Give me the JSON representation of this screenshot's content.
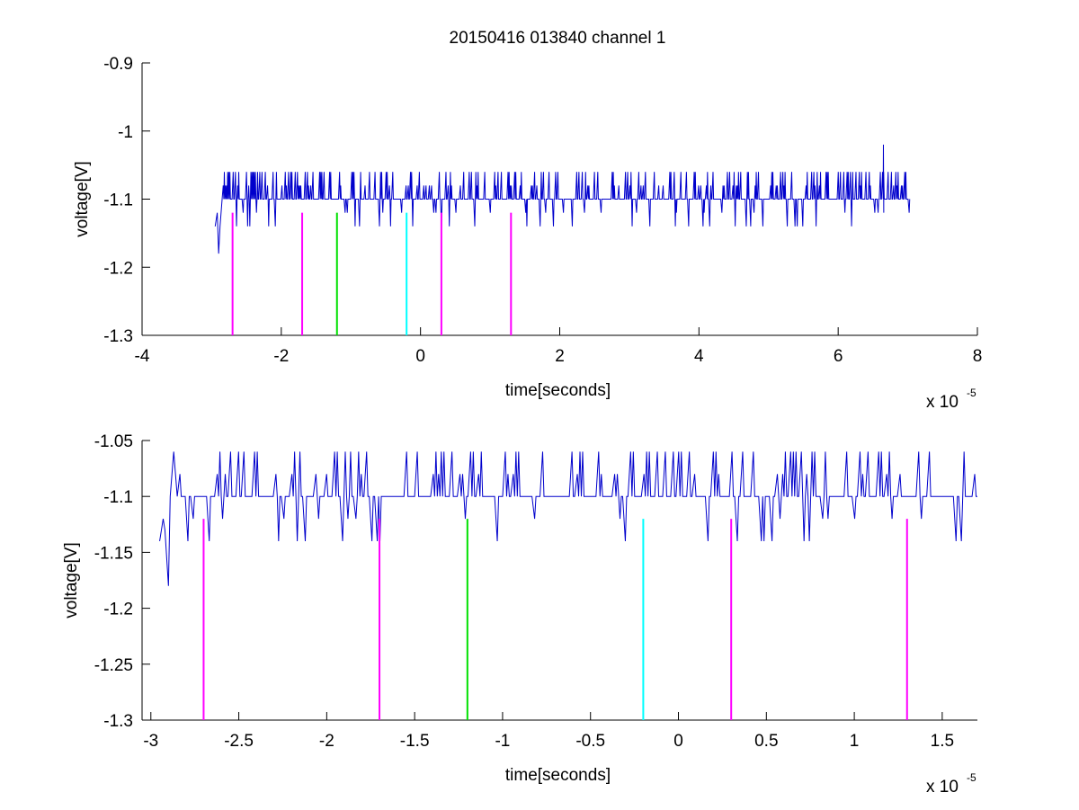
{
  "figure_title": "20150416 013840 channel 1",
  "colors": {
    "signal": "#0000cc",
    "magenta": "#ff00ff",
    "green": "#00e000",
    "cyan": "#00ffff",
    "axes": "#000000",
    "background": "#ffffff"
  },
  "chart_data": [
    {
      "type": "line",
      "title": "20150416 013840 channel 1",
      "xlabel": "time[seconds]",
      "ylabel": "voltage[V]",
      "x_multiplier_label": "x 10",
      "x_multiplier_exponent": "-5",
      "xlim": [
        -4,
        8
      ],
      "ylim": [
        -1.3,
        -0.9
      ],
      "x_ticks": [
        -4,
        -2,
        0,
        2,
        4,
        6,
        8
      ],
      "x_tick_labels": [
        "-4",
        "-2",
        "0",
        "2",
        "4",
        "6",
        "8"
      ],
      "y_ticks": [
        -1.3,
        -1.2,
        -1.1,
        -1,
        -0.9
      ],
      "y_tick_labels": [
        "-1.3",
        "-1.2",
        "-1.1",
        "-1",
        "-0.9"
      ],
      "grid": false,
      "series": [
        {
          "kind": "noisy-signal",
          "color": "#0000cc",
          "x_start": -2.95,
          "x_end": 7.02,
          "baseline": -1.1,
          "levels": [
            -1.14,
            -1.12,
            -1.1,
            -1.08,
            -1.06
          ],
          "initial_points": [
            [
              -2.95,
              -1.14
            ],
            [
              -2.92,
              -1.12
            ],
            [
              -2.9,
              -1.18
            ],
            [
              -2.88,
              -1.14
            ],
            [
              -2.85,
              -1.1
            ]
          ],
          "spike": [
            6.65,
            -1.02
          ]
        }
      ],
      "markers": [
        {
          "x": -2.7,
          "y_top": -1.12,
          "y_bottom": -1.3,
          "color": "#ff00ff"
        },
        {
          "x": -1.7,
          "y_top": -1.12,
          "y_bottom": -1.3,
          "color": "#ff00ff"
        },
        {
          "x": -1.2,
          "y_top": -1.12,
          "y_bottom": -1.3,
          "color": "#00e000"
        },
        {
          "x": -0.2,
          "y_top": -1.12,
          "y_bottom": -1.3,
          "color": "#00ffff"
        },
        {
          "x": 0.3,
          "y_top": -1.12,
          "y_bottom": -1.3,
          "color": "#ff00ff"
        },
        {
          "x": 1.3,
          "y_top": -1.12,
          "y_bottom": -1.3,
          "color": "#ff00ff"
        }
      ]
    },
    {
      "type": "line",
      "title": "",
      "xlabel": "time[seconds]",
      "ylabel": "voltage[V]",
      "x_multiplier_label": "x 10",
      "x_multiplier_exponent": "-5",
      "xlim": [
        -3.05,
        1.7
      ],
      "ylim": [
        -1.3,
        -1.05
      ],
      "x_ticks": [
        -3,
        -2.5,
        -2,
        -1.5,
        -1,
        -0.5,
        0,
        0.5,
        1,
        1.5
      ],
      "x_tick_labels": [
        "-3",
        "-2.5",
        "-2",
        "-1.5",
        "-1",
        "-0.5",
        "0",
        "0.5",
        "1",
        "1.5"
      ],
      "y_ticks": [
        -1.3,
        -1.25,
        -1.2,
        -1.15,
        -1.1,
        -1.05
      ],
      "y_tick_labels": [
        "-1.3",
        "-1.25",
        "-1.2",
        "-1.15",
        "-1.1",
        "-1.05"
      ],
      "grid": false,
      "series": [
        {
          "kind": "noisy-signal",
          "color": "#0000cc",
          "x_start": -2.95,
          "x_end": 1.7,
          "baseline": -1.1,
          "levels": [
            -1.14,
            -1.12,
            -1.1,
            -1.08,
            -1.06
          ],
          "initial_points": [
            [
              -2.95,
              -1.14
            ],
            [
              -2.93,
              -1.12
            ],
            [
              -2.92,
              -1.13
            ],
            [
              -2.9,
              -1.18
            ],
            [
              -2.89,
              -1.1
            ],
            [
              -2.87,
              -1.06
            ],
            [
              -2.85,
              -1.1
            ]
          ]
        }
      ],
      "markers": [
        {
          "x": -2.7,
          "y_top": -1.12,
          "y_bottom": -1.3,
          "color": "#ff00ff"
        },
        {
          "x": -1.7,
          "y_top": -1.12,
          "y_bottom": -1.3,
          "color": "#ff00ff"
        },
        {
          "x": -1.2,
          "y_top": -1.12,
          "y_bottom": -1.3,
          "color": "#00e000"
        },
        {
          "x": -0.2,
          "y_top": -1.12,
          "y_bottom": -1.3,
          "color": "#00ffff"
        },
        {
          "x": 0.3,
          "y_top": -1.12,
          "y_bottom": -1.3,
          "color": "#ff00ff"
        },
        {
          "x": 1.3,
          "y_top": -1.12,
          "y_bottom": -1.3,
          "color": "#ff00ff"
        }
      ]
    }
  ]
}
